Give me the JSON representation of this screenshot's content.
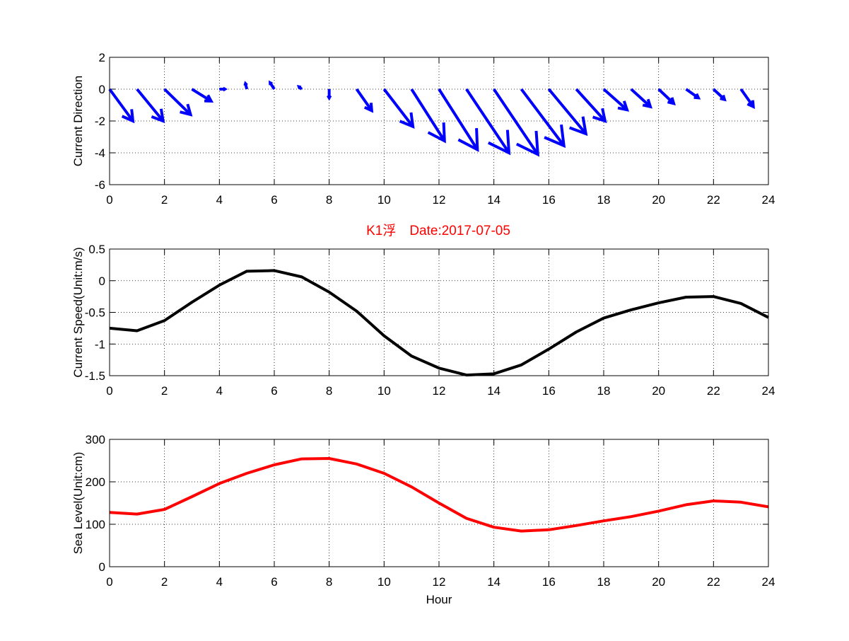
{
  "figure": {
    "title": "K1浮　Date:2017-07-05",
    "title_color": "#ff0000"
  },
  "chart_data": [
    {
      "type": "quiver",
      "ylabel": "Current Direction",
      "xlabel": "",
      "xlim": [
        0,
        24
      ],
      "ylim": [
        -6,
        2
      ],
      "xticks": [
        0,
        2,
        4,
        6,
        8,
        10,
        12,
        14,
        16,
        18,
        20,
        22,
        24
      ],
      "yticks": [
        -6,
        -4,
        -2,
        0,
        2
      ],
      "grid": true,
      "color": "#0000ff",
      "vectors": [
        {
          "x": 0,
          "u": 0.85,
          "v": -2.0
        },
        {
          "x": 1,
          "u": 0.95,
          "v": -2.0
        },
        {
          "x": 2,
          "u": 0.95,
          "v": -1.6
        },
        {
          "x": 3,
          "u": 0.7,
          "v": -0.75
        },
        {
          "x": 4,
          "u": 0.2,
          "v": 0.0
        },
        {
          "x": 5,
          "u": -0.05,
          "v": 0.35
        },
        {
          "x": 6,
          "u": -0.15,
          "v": 0.4
        },
        {
          "x": 7,
          "u": -0.1,
          "v": 0.15
        },
        {
          "x": 8,
          "u": 0.0,
          "v": -0.55
        },
        {
          "x": 9,
          "u": 0.55,
          "v": -1.35
        },
        {
          "x": 10,
          "u": 1.05,
          "v": -2.35
        },
        {
          "x": 11,
          "u": 1.2,
          "v": -3.25
        },
        {
          "x": 12,
          "u": 1.4,
          "v": -3.8
        },
        {
          "x": 13,
          "u": 1.55,
          "v": -4.0
        },
        {
          "x": 14,
          "u": 1.6,
          "v": -4.1
        },
        {
          "x": 15,
          "u": 1.55,
          "v": -3.55
        },
        {
          "x": 16,
          "u": 1.35,
          "v": -2.8
        },
        {
          "x": 17,
          "u": 1.05,
          "v": -2.0
        },
        {
          "x": 18,
          "u": 0.85,
          "v": -1.3
        },
        {
          "x": 19,
          "u": 0.7,
          "v": -1.1
        },
        {
          "x": 20,
          "u": 0.55,
          "v": -0.9
        },
        {
          "x": 21,
          "u": 0.45,
          "v": -0.55
        },
        {
          "x": 22,
          "u": 0.4,
          "v": -0.65
        },
        {
          "x": 23,
          "u": 0.45,
          "v": -1.1
        }
      ]
    },
    {
      "type": "line",
      "ylabel": "Current Speed(Unit:m/s)",
      "xlabel": "",
      "xlim": [
        0,
        24
      ],
      "ylim": [
        -1.5,
        0.5
      ],
      "xticks": [
        0,
        2,
        4,
        6,
        8,
        10,
        12,
        14,
        16,
        18,
        20,
        22,
        24
      ],
      "yticks": [
        -1.5,
        -1,
        -0.5,
        0,
        0.5
      ],
      "yticklabels": [
        "-1.5",
        "-1",
        "-0.5",
        "0",
        "0.5"
      ],
      "grid": true,
      "color": "#000000",
      "series": [
        {
          "x": [
            0,
            1,
            2,
            3,
            4,
            5,
            6,
            7,
            8,
            9,
            10,
            11,
            12,
            13,
            14,
            15,
            16,
            17,
            18,
            19,
            20,
            21,
            22,
            23,
            24
          ],
          "values": [
            -0.75,
            -0.79,
            -0.63,
            -0.34,
            -0.07,
            0.15,
            0.16,
            0.06,
            -0.18,
            -0.48,
            -0.87,
            -1.19,
            -1.38,
            -1.49,
            -1.47,
            -1.33,
            -1.08,
            -0.81,
            -0.59,
            -0.46,
            -0.35,
            -0.26,
            -0.25,
            -0.36,
            -0.58
          ]
        }
      ]
    },
    {
      "type": "line",
      "ylabel": "Sea Level(Unit:cm)",
      "xlabel": "Hour",
      "xlim": [
        0,
        24
      ],
      "ylim": [
        0,
        300
      ],
      "xticks": [
        0,
        2,
        4,
        6,
        8,
        10,
        12,
        14,
        16,
        18,
        20,
        22,
        24
      ],
      "yticks": [
        0,
        100,
        200,
        300
      ],
      "grid": true,
      "color": "#ff0000",
      "series": [
        {
          "x": [
            0,
            1,
            2,
            3,
            4,
            5,
            6,
            7,
            8,
            9,
            10,
            11,
            12,
            13,
            14,
            15,
            16,
            17,
            18,
            19,
            20,
            21,
            22,
            23,
            24
          ],
          "values": [
            128,
            124,
            135,
            165,
            196,
            220,
            240,
            254,
            255,
            242,
            220,
            188,
            150,
            114,
            93,
            84,
            87,
            97,
            108,
            118,
            131,
            146,
            155,
            152,
            141
          ]
        }
      ]
    }
  ]
}
